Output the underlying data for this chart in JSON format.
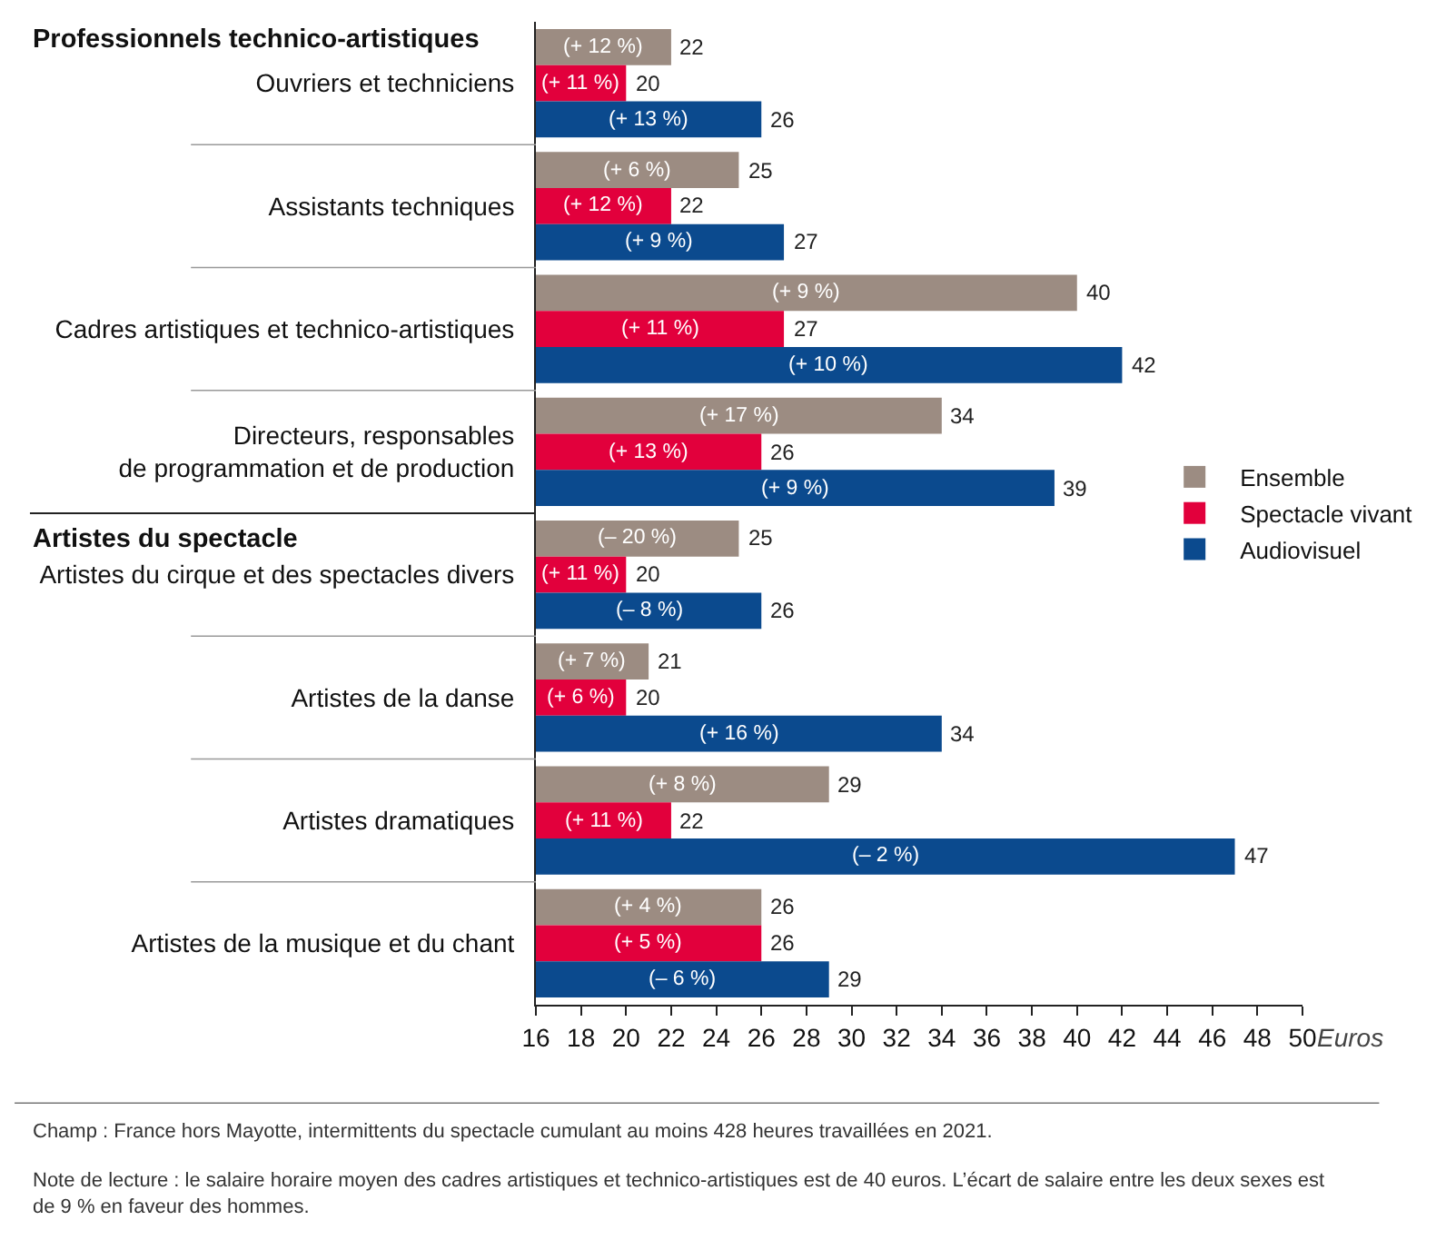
{
  "chart_data": {
    "type": "bar",
    "orientation": "horizontal",
    "categories": [
      "Ouvriers et techniciens",
      "Assistants techniques",
      "Cadres artistiques et technico-artistiques",
      "Directeurs, responsables\nde programmation et de production",
      "Artistes du cirque et des spectacles divers",
      "Artistes de la danse",
      "Artistes dramatiques",
      "Artistes de la musique et du chant"
    ],
    "series": [
      {
        "name": "Ensemble",
        "color": "#9c8c82",
        "values": [
          22,
          25,
          40,
          34,
          25,
          21,
          29,
          26
        ]
      },
      {
        "name": "Spectacle vivant",
        "color": "#e2003c",
        "values": [
          20,
          22,
          27,
          26,
          20,
          20,
          22,
          26
        ]
      },
      {
        "name": "Audiovisuel",
        "color": "#0b4a8e",
        "values": [
          26,
          27,
          42,
          39,
          26,
          34,
          47,
          29
        ]
      }
    ],
    "xlim": [
      16,
      50
    ],
    "xticks": [
      16,
      18,
      20,
      22,
      24,
      26,
      28,
      30,
      32,
      34,
      36,
      38,
      40,
      42,
      44,
      46,
      48,
      50
    ],
    "xlabel": "Euros",
    "data_labels": true,
    "grid": false,
    "legend": "right",
    "annotations": [
      "Professionnels technico-artistiques",
      "Artistes du spectacle",
      "Champ : France hors Mayotte, intermittents du spectacle cumulant au moins 428 heures travaillées en 2021.",
      "Note de lecture : le salaire horaire moyen des cadres artistiques et technico-artistiques est de 40 euros. L’écart de salaire entre les deux sexes est de 9 % en faveur des hommes.",
      "(+ 12 %)",
      "(+ 11 %)",
      "(+ 13 %)",
      "(+ 6 %)",
      "(+ 12 %)",
      "(+ 9 %)",
      "(+ 9 %)",
      "(+ 11 %)",
      "(+ 10 %)",
      "(+ 17 %)",
      "(+ 13 %)",
      "(+ 9 %)",
      "(– 20 %)",
      "(+ 11 %)",
      "(– 8 %)",
      "(+ 7 %)",
      "(+ 6 %)",
      "(+ 16 %)",
      "(+ 8 %)",
      "(+ 11 %)",
      "(– 2 %)",
      "(+ 4 %)",
      "(+ 5 %)",
      "(– 6 %)"
    ]
  }
}
